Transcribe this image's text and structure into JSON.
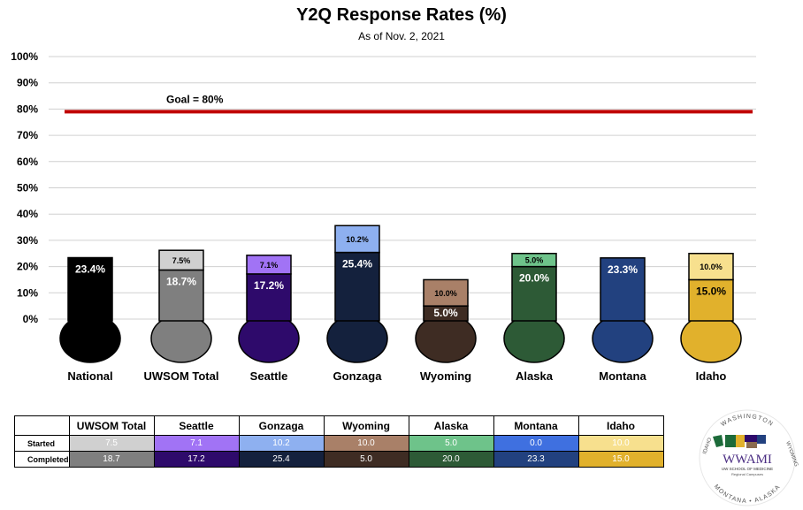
{
  "chart_data": {
    "type": "bar",
    "title": "Y2Q Response Rates (%)",
    "subtitle": "As of Nov. 2, 2021",
    "y_tick_labels": [
      "0%",
      "10%",
      "20%",
      "30%",
      "40%",
      "50%",
      "60%",
      "70%",
      "80%",
      "90%",
      "100%"
    ],
    "ylim": [
      0,
      100
    ],
    "grid": true,
    "goal": {
      "value": 80,
      "label": "Goal = 80%",
      "color": "#c00000"
    },
    "categories": [
      "National",
      "UWSOM Total",
      "Seattle",
      "Gonzaga",
      "Wyoming",
      "Alaska",
      "Montana",
      "Idaho"
    ],
    "series": [
      {
        "name": "Completed",
        "values": [
          23.4,
          18.7,
          17.2,
          25.4,
          5.0,
          20.0,
          23.3,
          15.0
        ],
        "labels": [
          "23.4%",
          "18.7%",
          "17.2%",
          "25.4%",
          "5.0%",
          "20.0%",
          "23.3%",
          "15.0%"
        ]
      },
      {
        "name": "Started",
        "values": [
          null,
          7.5,
          7.1,
          10.2,
          10.0,
          5.0,
          null,
          10.0
        ],
        "labels": [
          "",
          "7.5%",
          "7.1%",
          "10.2%",
          "10.0%",
          "5.0%",
          "",
          "10.0%"
        ]
      }
    ],
    "colors": {
      "completed": [
        "#000000",
        "#7f7f7f",
        "#2e0a6b",
        "#14213d",
        "#3e2c23",
        "#2d5a36",
        "#22417f",
        "#e1b12c"
      ],
      "started": [
        null,
        "#d0d0d0",
        "#a173f5",
        "#8eb0f0",
        "#a98068",
        "#6ec38a",
        null,
        "#f7e08e"
      ]
    }
  },
  "table": {
    "columns": [
      "UWSOM Total",
      "Seattle",
      "Gonzaga",
      "Wyoming",
      "Alaska",
      "Montana",
      "Idaho"
    ],
    "rows": [
      {
        "label": "Started",
        "values": [
          "7.5",
          "7.1",
          "10.2",
          "10.0",
          "5.0",
          "0.0",
          "10.0"
        ],
        "colors": [
          "#d0d0d0",
          "#a173f5",
          "#8eb0f0",
          "#a98068",
          "#6ec38a",
          "#3f70e0",
          "#f7e08e"
        ]
      },
      {
        "label": "Completed",
        "values": [
          "18.7",
          "17.2",
          "25.4",
          "5.0",
          "20.0",
          "23.3",
          "15.0"
        ],
        "colors": [
          "#7f7f7f",
          "#2e0a6b",
          "#14213d",
          "#3e2c23",
          "#2d5a36",
          "#22417f",
          "#e1b12c"
        ]
      }
    ]
  },
  "logo": {
    "name": "WWAMI",
    "top_arc": "WASHINGTON",
    "left_arc": "IDAHO",
    "right_arc": "WYOMING",
    "bottom_arc": "MONTANA • ALASKA",
    "line1": "UW SCHOOL OF MEDICINE",
    "line2": "Regional Campuses"
  }
}
